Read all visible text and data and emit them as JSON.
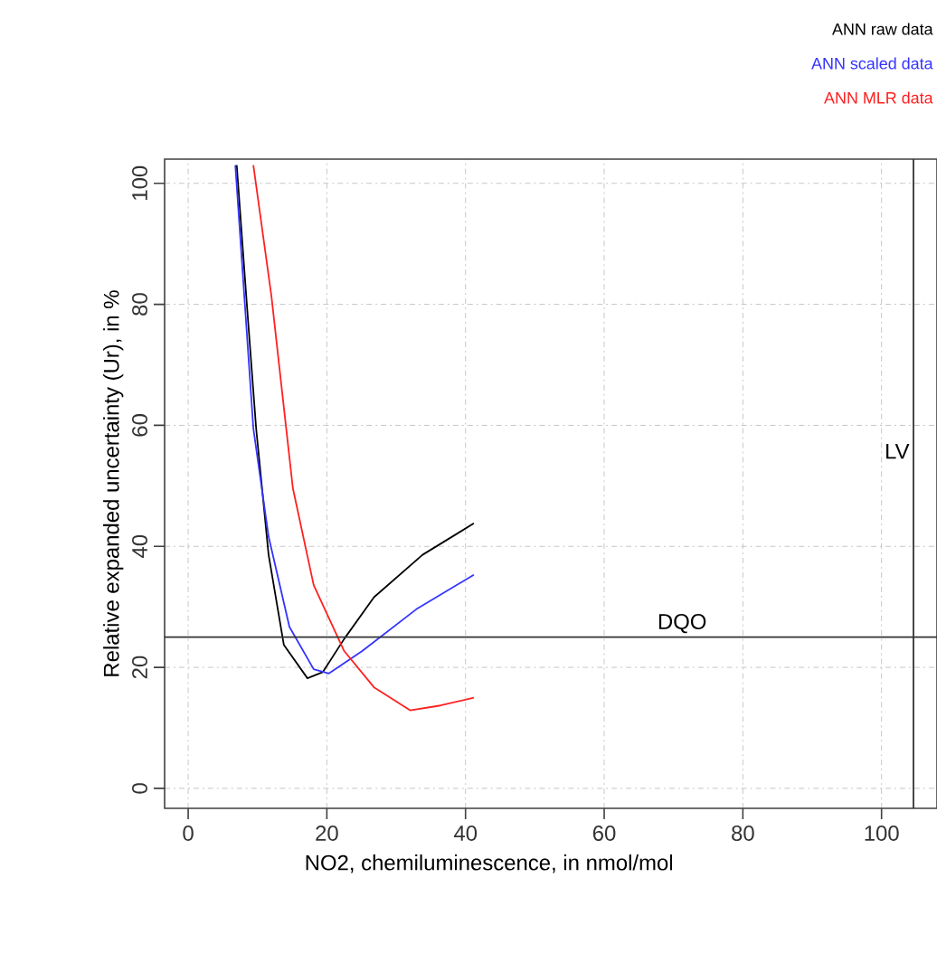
{
  "chart_data": {
    "type": "line",
    "xlabel": "NO2, chemiluminescence, in nmol/mol",
    "ylabel": "Relative expanded uncertainty (Ur), in %",
    "xlim": [
      -3.4,
      108
    ],
    "ylim": [
      -3.3,
      104
    ],
    "xticks": [
      0,
      20,
      40,
      60,
      80,
      100
    ],
    "yticks": [
      0,
      20,
      40,
      60,
      80,
      100
    ],
    "grid": true,
    "legend": "top right",
    "line_style": "solid",
    "marker": "none",
    "series": [
      {
        "name": "ANN raw data",
        "color": "#000000",
        "x": [
          7.0,
          8.5,
          9.8,
          11.6,
          13.8,
          17.2,
          19.4,
          22.5,
          26.8,
          33.8,
          41.2
        ],
        "values": [
          103,
          79.4,
          59.5,
          38.6,
          23.7,
          18.2,
          19.2,
          24.7,
          31.6,
          38.6,
          43.8
        ]
      },
      {
        "name": "ANN scaled data",
        "color": "#3333ff",
        "x": [
          6.8,
          9.4,
          11.6,
          14.6,
          18.1,
          20.3,
          25.1,
          32.9,
          41.2
        ],
        "values": [
          103,
          59.5,
          41.6,
          26.7,
          19.7,
          19.0,
          22.7,
          29.6,
          35.3
        ]
      },
      {
        "name": "ANN MLR data",
        "color": "#ff2020",
        "x": [
          9.4,
          12.0,
          15.1,
          18.1,
          22.5,
          26.8,
          32.0,
          36.4,
          41.2
        ],
        "values": [
          103,
          81.4,
          49.6,
          33.6,
          22.7,
          16.7,
          12.9,
          13.7,
          15.0
        ]
      }
    ],
    "ref_lines": [
      {
        "axis": "y",
        "value": 25,
        "label": "DQO"
      },
      {
        "axis": "x",
        "value": 104.6,
        "label": "LV"
      }
    ]
  }
}
